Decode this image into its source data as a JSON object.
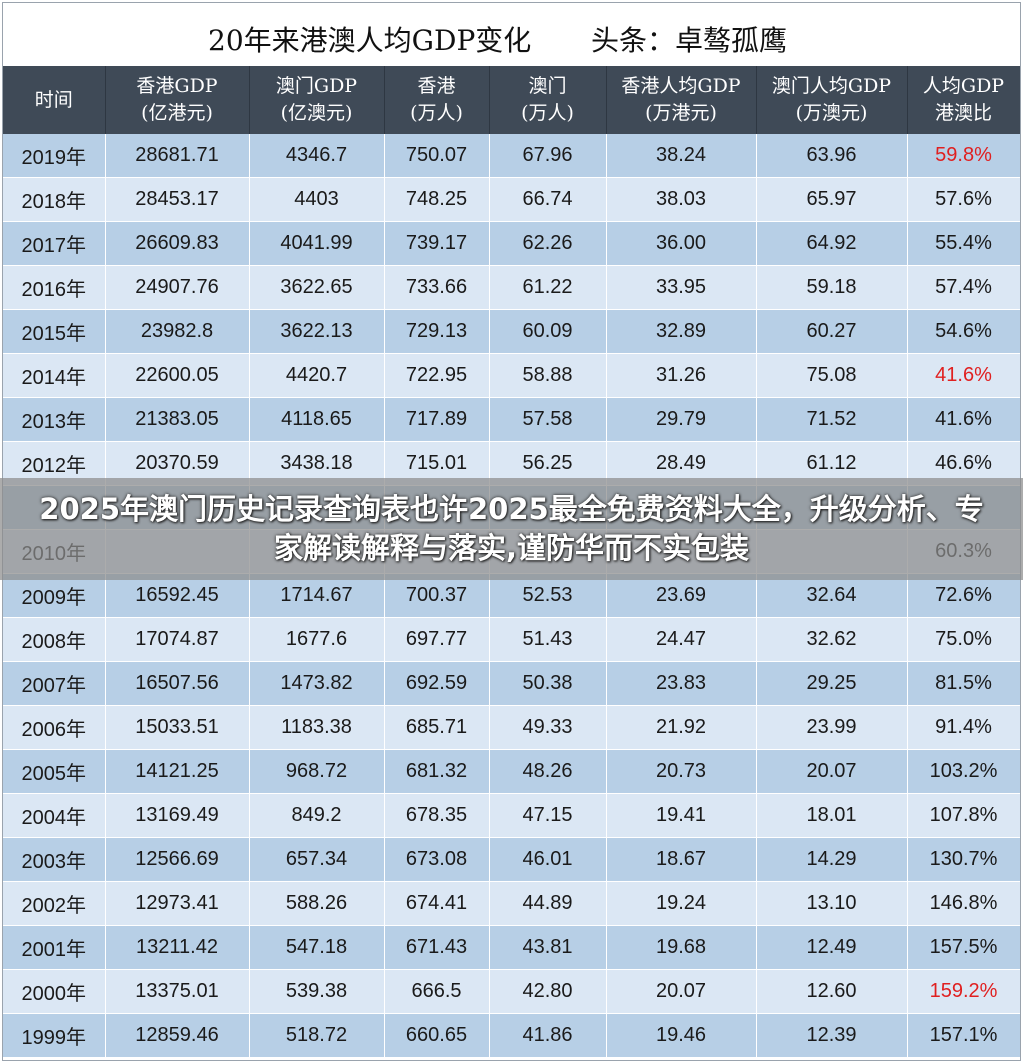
{
  "title": {
    "main": "20年来港澳人均GDP变化",
    "source": "头条：卓骜孤鹰"
  },
  "columns": [
    {
      "line1": "时间",
      "line2": ""
    },
    {
      "line1": "香港GDP",
      "line2": "(亿港元)"
    },
    {
      "line1": "澳门GDP",
      "line2": "(亿澳元)"
    },
    {
      "line1": "香港",
      "line2": "(万人)"
    },
    {
      "line1": "澳门",
      "line2": "(万人)"
    },
    {
      "line1": "香港人均GDP",
      "line2": "(万港元)"
    },
    {
      "line1": "澳门人均GDP",
      "line2": "(万澳元)"
    },
    {
      "line1": "人均GDP",
      "line2": "港澳比"
    }
  ],
  "rows": [
    {
      "year": "2019年",
      "hk_gdp": "28681.71",
      "mo_gdp": "4346.7",
      "hk_pop": "750.07",
      "mo_pop": "67.96",
      "hk_pc": "38.24",
      "mo_pc": "63.96",
      "ratio": "59.8%",
      "highlight": true
    },
    {
      "year": "2018年",
      "hk_gdp": "28453.17",
      "mo_gdp": "4403",
      "hk_pop": "748.25",
      "mo_pop": "66.74",
      "hk_pc": "38.03",
      "mo_pc": "65.97",
      "ratio": "57.6%",
      "highlight": false
    },
    {
      "year": "2017年",
      "hk_gdp": "26609.83",
      "mo_gdp": "4041.99",
      "hk_pop": "739.17",
      "mo_pop": "62.26",
      "hk_pc": "36.00",
      "mo_pc": "64.92",
      "ratio": "55.4%",
      "highlight": false
    },
    {
      "year": "2016年",
      "hk_gdp": "24907.76",
      "mo_gdp": "3622.65",
      "hk_pop": "733.66",
      "mo_pop": "61.22",
      "hk_pc": "33.95",
      "mo_pc": "59.18",
      "ratio": "57.4%",
      "highlight": false
    },
    {
      "year": "2015年",
      "hk_gdp": "23982.8",
      "mo_gdp": "3622.13",
      "hk_pop": "729.13",
      "mo_pop": "60.09",
      "hk_pc": "32.89",
      "mo_pc": "60.27",
      "ratio": "54.6%",
      "highlight": false
    },
    {
      "year": "2014年",
      "hk_gdp": "22600.05",
      "mo_gdp": "4420.7",
      "hk_pop": "722.95",
      "mo_pop": "58.88",
      "hk_pc": "31.26",
      "mo_pc": "75.08",
      "ratio": "41.6%",
      "highlight": true
    },
    {
      "year": "2013年",
      "hk_gdp": "21383.05",
      "mo_gdp": "4118.65",
      "hk_pop": "717.89",
      "mo_pop": "57.58",
      "hk_pc": "29.79",
      "mo_pc": "71.52",
      "ratio": "41.6%",
      "highlight": false
    },
    {
      "year": "2012年",
      "hk_gdp": "20370.59",
      "mo_gdp": "3438.18",
      "hk_pop": "715.01",
      "mo_pop": "56.25",
      "hk_pc": "28.49",
      "mo_pc": "61.12",
      "ratio": "46.6%",
      "highlight": false
    },
    {
      "year": "",
      "hk_gdp": "",
      "mo_gdp": "",
      "hk_pop": "",
      "mo_pop": "",
      "hk_pc": "",
      "mo_pc": "",
      "ratio": "",
      "highlight": false
    },
    {
      "year": "2010年",
      "hk_gdp": "",
      "mo_gdp": "",
      "hk_pop": "",
      "mo_pop": "",
      "hk_pc": "",
      "mo_pc": "",
      "ratio": "60.3%",
      "highlight": false
    },
    {
      "year": "2009年",
      "hk_gdp": "16592.45",
      "mo_gdp": "1714.67",
      "hk_pop": "700.37",
      "mo_pop": "52.53",
      "hk_pc": "23.69",
      "mo_pc": "32.64",
      "ratio": "72.6%",
      "highlight": false
    },
    {
      "year": "2008年",
      "hk_gdp": "17074.87",
      "mo_gdp": "1677.6",
      "hk_pop": "697.77",
      "mo_pop": "51.43",
      "hk_pc": "24.47",
      "mo_pc": "32.62",
      "ratio": "75.0%",
      "highlight": false
    },
    {
      "year": "2007年",
      "hk_gdp": "16507.56",
      "mo_gdp": "1473.82",
      "hk_pop": "692.59",
      "mo_pop": "50.38",
      "hk_pc": "23.83",
      "mo_pc": "29.25",
      "ratio": "81.5%",
      "highlight": false
    },
    {
      "year": "2006年",
      "hk_gdp": "15033.51",
      "mo_gdp": "1183.38",
      "hk_pop": "685.71",
      "mo_pop": "49.33",
      "hk_pc": "21.92",
      "mo_pc": "23.99",
      "ratio": "91.4%",
      "highlight": false
    },
    {
      "year": "2005年",
      "hk_gdp": "14121.25",
      "mo_gdp": "968.72",
      "hk_pop": "681.32",
      "mo_pop": "48.26",
      "hk_pc": "20.73",
      "mo_pc": "20.07",
      "ratio": "103.2%",
      "highlight": false
    },
    {
      "year": "2004年",
      "hk_gdp": "13169.49",
      "mo_gdp": "849.2",
      "hk_pop": "678.35",
      "mo_pop": "47.15",
      "hk_pc": "19.41",
      "mo_pc": "18.01",
      "ratio": "107.8%",
      "highlight": false
    },
    {
      "year": "2003年",
      "hk_gdp": "12566.69",
      "mo_gdp": "657.34",
      "hk_pop": "673.08",
      "mo_pop": "46.01",
      "hk_pc": "18.67",
      "mo_pc": "14.29",
      "ratio": "130.7%",
      "highlight": false
    },
    {
      "year": "2002年",
      "hk_gdp": "12973.41",
      "mo_gdp": "588.26",
      "hk_pop": "674.41",
      "mo_pop": "44.89",
      "hk_pc": "19.24",
      "mo_pc": "13.10",
      "ratio": "146.8%",
      "highlight": false
    },
    {
      "year": "2001年",
      "hk_gdp": "13211.42",
      "mo_gdp": "547.18",
      "hk_pop": "671.43",
      "mo_pop": "43.81",
      "hk_pc": "19.68",
      "mo_pc": "12.49",
      "ratio": "157.5%",
      "highlight": false
    },
    {
      "year": "2000年",
      "hk_gdp": "13375.01",
      "mo_gdp": "539.38",
      "hk_pop": "666.5",
      "mo_pop": "42.80",
      "hk_pc": "20.07",
      "mo_pc": "12.60",
      "ratio": "159.2%",
      "highlight": true
    },
    {
      "year": "1999年",
      "hk_gdp": "12859.46",
      "mo_gdp": "518.72",
      "hk_pop": "660.65",
      "mo_pop": "41.86",
      "hk_pc": "19.46",
      "mo_pc": "12.39",
      "ratio": "157.1%",
      "highlight": false
    }
  ],
  "overlay": {
    "text": "2025年澳门历史记录查询表也许2025最全免费资料大全，升级分析、专家解读解释与落实,谨防华而不实包装"
  },
  "colors": {
    "header_bg": "#3f4a57",
    "row_dark": "#b7cfe6",
    "row_light": "#dbe7f4",
    "highlight_red": "#e02020"
  }
}
